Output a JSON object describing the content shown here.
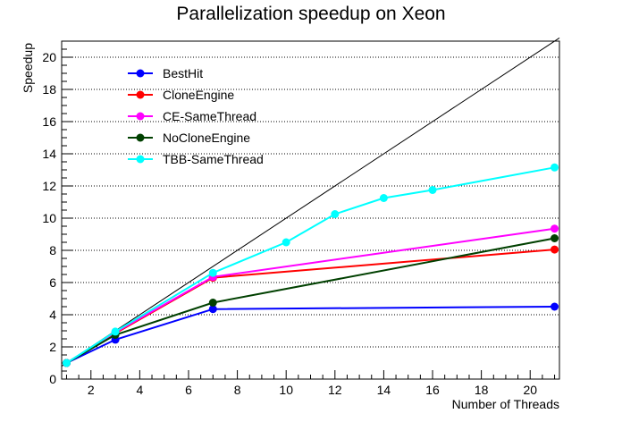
{
  "chart_data": {
    "type": "line",
    "title": "Parallelization speedup on Xeon",
    "xlabel": "Number of Threads",
    "ylabel": "Speedup",
    "xlim": [
      0.8,
      21.2
    ],
    "ylim": [
      0,
      21
    ],
    "x_ticks": [
      2,
      4,
      6,
      8,
      10,
      12,
      14,
      16,
      18,
      20
    ],
    "y_ticks": [
      0,
      2,
      4,
      6,
      8,
      10,
      12,
      14,
      16,
      18,
      20
    ],
    "grid": "horizontal dotted",
    "legend_placement": "top-left",
    "reference_line": {
      "x": [
        0.8,
        21.2
      ],
      "y": [
        0.8,
        21.2
      ],
      "color": "#000000"
    },
    "series": [
      {
        "name": "BestHit",
        "color": "#0000ff",
        "x": [
          1,
          3,
          7,
          21
        ],
        "y": [
          1.0,
          2.45,
          4.35,
          4.5
        ]
      },
      {
        "name": "CloneEngine",
        "color": "#ff0000",
        "x": [
          1,
          3,
          7,
          21
        ],
        "y": [
          1.0,
          2.85,
          6.3,
          8.05
        ]
      },
      {
        "name": "CE-SameThread",
        "color": "#ff00ff",
        "x": [
          1,
          3,
          7,
          21
        ],
        "y": [
          1.0,
          2.9,
          6.35,
          9.35
        ]
      },
      {
        "name": "NoCloneEngine",
        "color": "#004000",
        "x": [
          1,
          3,
          7,
          21
        ],
        "y": [
          1.0,
          2.75,
          4.75,
          8.75
        ]
      },
      {
        "name": "TBB-SameThread",
        "color": "#00ffff",
        "x": [
          1,
          3,
          7,
          10,
          12,
          14,
          16,
          21
        ],
        "y": [
          1.0,
          2.95,
          6.6,
          8.5,
          10.25,
          11.25,
          11.75,
          13.15
        ]
      }
    ]
  }
}
